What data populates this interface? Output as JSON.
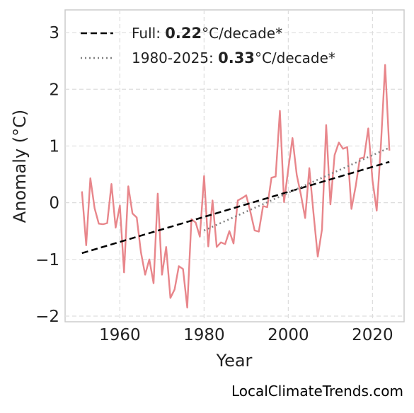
{
  "chart_data": {
    "type": "line",
    "xlabel": "Year",
    "ylabel": "Anomaly (°C)",
    "xlim": [
      1947,
      2027.5
    ],
    "ylim": [
      -2.1,
      3.4
    ],
    "x_ticks": [
      "1960",
      "1980",
      "2000",
      "2020"
    ],
    "x_tick_values": [
      1960,
      1980,
      2000,
      2020
    ],
    "y_ticks": [
      "−2",
      "−1",
      "0",
      "1",
      "2",
      "3"
    ],
    "y_tick_values": [
      -2,
      -1,
      0,
      1,
      2,
      3
    ],
    "grid": true,
    "legend_position": "top-left",
    "series": [
      {
        "color": "#e8868b",
        "x": [
          1951,
          1952,
          1953,
          1954,
          1955,
          1956,
          1957,
          1958,
          1959,
          1960,
          1961,
          1962,
          1963,
          1964,
          1965,
          1966,
          1967,
          1968,
          1969,
          1970,
          1971,
          1972,
          1973,
          1974,
          1975,
          1976,
          1977,
          1978,
          1979,
          1980,
          1981,
          1982,
          1983,
          1984,
          1985,
          1986,
          1987,
          1988,
          1989,
          1990,
          1991,
          1992,
          1993,
          1994,
          1995,
          1996,
          1997,
          1998,
          1999,
          2000,
          2001,
          2002,
          2003,
          2004,
          2005,
          2006,
          2007,
          2008,
          2009,
          2010,
          2011,
          2012,
          2013,
          2014,
          2015,
          2016,
          2017,
          2018,
          2019,
          2020,
          2021,
          2022,
          2023,
          2024
        ],
        "values": [
          0.2,
          -0.75,
          0.43,
          -0.1,
          -0.37,
          -0.38,
          -0.36,
          0.33,
          -0.44,
          -0.05,
          -1.23,
          0.29,
          -0.19,
          -0.26,
          -0.87,
          -1.27,
          -1.0,
          -1.42,
          0.16,
          -1.27,
          -0.78,
          -1.68,
          -1.53,
          -1.12,
          -1.17,
          -1.85,
          -0.29,
          -0.35,
          -0.6,
          0.47,
          -0.77,
          0.04,
          -0.78,
          -0.7,
          -0.73,
          -0.5,
          -0.72,
          0.04,
          0.08,
          0.13,
          -0.16,
          -0.49,
          -0.51,
          -0.06,
          -0.08,
          0.44,
          0.46,
          1.62,
          0.01,
          0.6,
          1.14,
          0.49,
          0.14,
          -0.27,
          0.61,
          -0.2,
          -0.95,
          -0.47,
          1.37,
          -0.03,
          0.84,
          1.06,
          0.95,
          0.98,
          -0.11,
          0.29,
          0.78,
          0.8,
          1.31,
          0.39,
          -0.14,
          1.03,
          2.43,
          0.92
        ]
      }
    ],
    "trends": [
      {
        "label_prefix": "Full: ",
        "label_value": "0.22",
        "label_suffix": "°C/decade*",
        "style": "dashed",
        "color": "#000000",
        "x": [
          1951,
          2024
        ],
        "y": [
          -0.89,
          0.72
        ]
      },
      {
        "label_prefix": "1980-2025: ",
        "label_value": "0.33",
        "label_suffix": "°C/decade*",
        "style": "dotted",
        "color": "#808080",
        "x": [
          1980,
          2024
        ],
        "y": [
          -0.49,
          0.97
        ]
      }
    ],
    "watermark": "LocalClimateTrends.com"
  }
}
